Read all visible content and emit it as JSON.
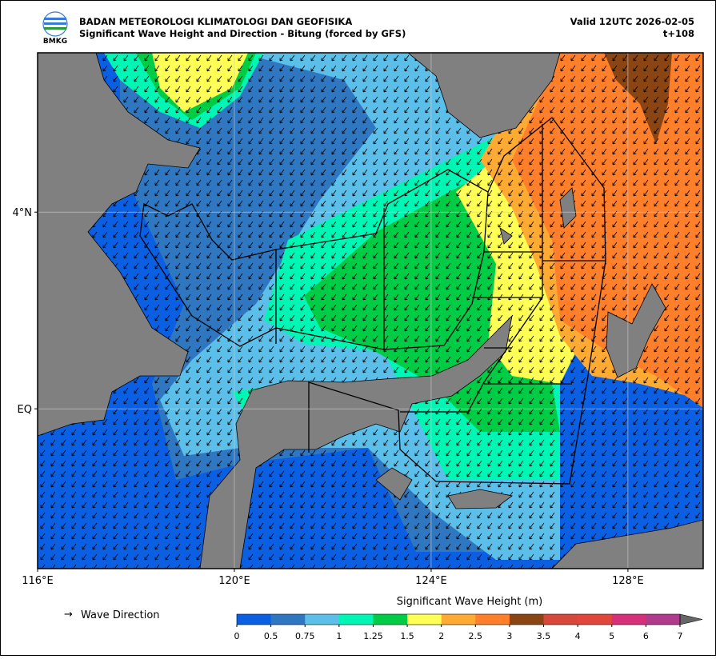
{
  "header": {
    "org": "BADAN METEOROLOGI KLIMATOLOGI DAN GEOFISIKA",
    "title": "Significant Wave Height and Direction - Bitung (forced by GFS)",
    "valid": "Valid 12UTC 2026-02-05",
    "lead": "t+108",
    "logo_text": "BMKG"
  },
  "map": {
    "xlim": [
      116,
      129.53
    ],
    "ylim": [
      -3.25,
      7.24
    ],
    "xticks": [
      {
        "value": 116,
        "label": "116°E"
      },
      {
        "value": 120,
        "label": "120°E"
      },
      {
        "value": 124,
        "label": "124°E"
      },
      {
        "value": 128,
        "label": "128°E"
      }
    ],
    "yticks": [
      {
        "value": 4,
        "label": "4°N"
      },
      {
        "value": 0,
        "label": "EQ"
      }
    ],
    "grid": true
  },
  "legend": {
    "arrow": "→",
    "label": "Wave Direction"
  },
  "colorbar": {
    "title": "Significant Wave Height (m)",
    "ticks": [
      0,
      0.5,
      0.75,
      1,
      1.25,
      1.5,
      2,
      2.5,
      3,
      3.5,
      4,
      5,
      6,
      7
    ],
    "colors": [
      "#0a5fe3",
      "#2f77c1",
      "#5bbfe9",
      "#00f6b4",
      "#00cc45",
      "#ffff55",
      "#ffaa33",
      "#ff7f2a",
      "#8b4513",
      "#d8483a",
      "#e0473a",
      "#d6307a",
      "#b03a8c"
    ],
    "over_color": "#666666"
  }
}
